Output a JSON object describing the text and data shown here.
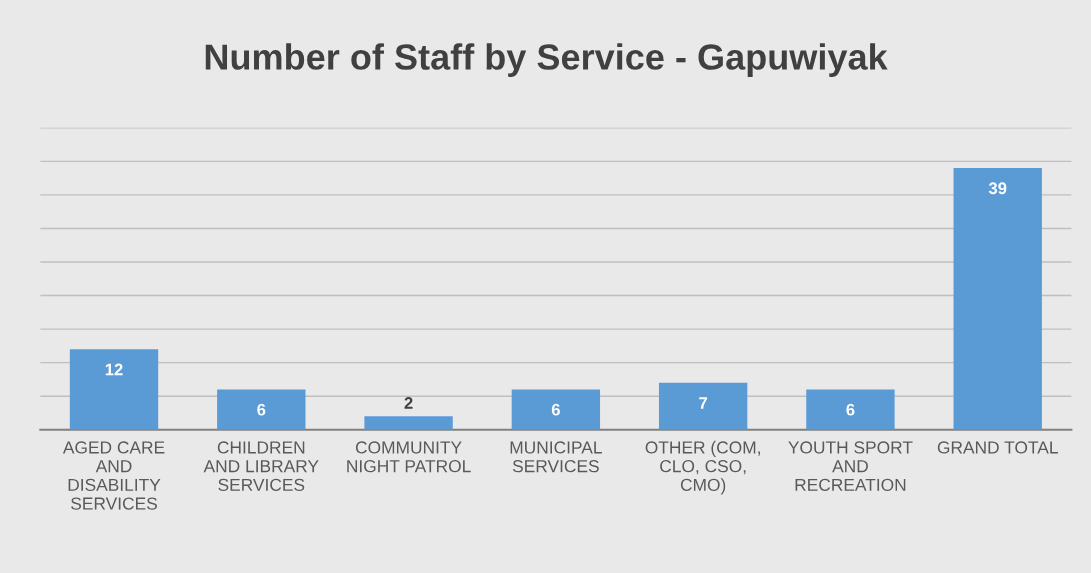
{
  "chart_data": {
    "type": "bar",
    "title": "Number of Staff by Service - Gapuwiyak",
    "categories": [
      "AGED CARE\nAND\nDISABILITY\nSERVICES",
      "CHILDREN\nAND LIBRARY\nSERVICES",
      "COMMUNITY\nNIGHT PATROL",
      "MUNICIPAL\nSERVICES",
      "OTHER (COM,\nCLO, CSO,\nCMO)",
      "YOUTH SPORT\nAND\nRECREATION",
      "GRAND TOTAL"
    ],
    "values": [
      12,
      6,
      2,
      6,
      7,
      6,
      39
    ],
    "color": "#5b9bd5",
    "ylim": [
      0,
      45
    ],
    "yticks": [
      {
        "value": 0,
        "label": null
      },
      {
        "value": 5,
        "label": null
      },
      {
        "value": 10,
        "label": null
      },
      {
        "value": 15,
        "label": null
      },
      {
        "value": 20,
        "label": null
      },
      {
        "value": 25,
        "label": null
      },
      {
        "value": 30,
        "label": null
      },
      {
        "value": 35,
        "label": null
      },
      {
        "value": 40,
        "label": null
      },
      {
        "value": 45,
        "label": null
      }
    ],
    "grid": "y",
    "tick_labels": "x",
    "data_labels": true
  }
}
